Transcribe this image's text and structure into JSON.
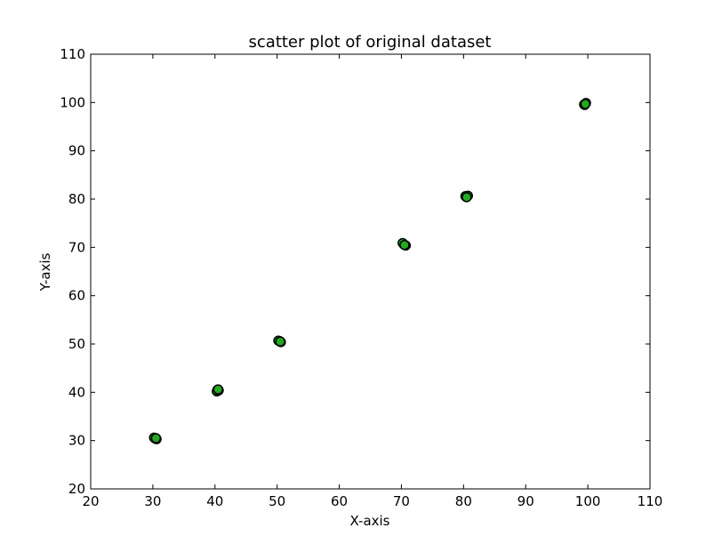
{
  "chart_data": {
    "type": "scatter",
    "title": "scatter plot of original dataset",
    "xlabel": "X-axis",
    "ylabel": "Y-axis",
    "xlim": [
      20,
      110
    ],
    "ylim": [
      20,
      110
    ],
    "xticks": [
      20,
      30,
      40,
      50,
      60,
      70,
      80,
      90,
      100,
      110
    ],
    "yticks": [
      20,
      30,
      40,
      50,
      60,
      70,
      80,
      90,
      100,
      110
    ],
    "grid": false,
    "legend": false,
    "marker_color": "#22aa22",
    "marker_edge_color": "#000000",
    "series": [
      {
        "points": [
          {
            "x": 30.4,
            "y": 30.4
          },
          {
            "x": 30.2,
            "y": 30.6
          },
          {
            "x": 30.6,
            "y": 30.3
          },
          {
            "x": 30.5,
            "y": 30.5
          },
          {
            "x": 40.4,
            "y": 40.5
          },
          {
            "x": 40.3,
            "y": 40.2
          },
          {
            "x": 40.6,
            "y": 40.4
          },
          {
            "x": 40.5,
            "y": 40.6
          },
          {
            "x": 50.4,
            "y": 50.6
          },
          {
            "x": 50.2,
            "y": 50.7
          },
          {
            "x": 50.6,
            "y": 50.4
          },
          {
            "x": 50.5,
            "y": 50.5
          },
          {
            "x": 70.4,
            "y": 70.6
          },
          {
            "x": 70.2,
            "y": 70.9
          },
          {
            "x": 70.7,
            "y": 70.4
          },
          {
            "x": 70.5,
            "y": 70.5
          },
          {
            "x": 80.4,
            "y": 80.5
          },
          {
            "x": 80.7,
            "y": 80.7
          },
          {
            "x": 80.3,
            "y": 80.6
          },
          {
            "x": 80.5,
            "y": 80.4
          },
          {
            "x": 99.4,
            "y": 99.6
          },
          {
            "x": 99.7,
            "y": 99.9
          },
          {
            "x": 99.5,
            "y": 99.5
          },
          {
            "x": 99.6,
            "y": 99.7
          }
        ]
      }
    ]
  }
}
